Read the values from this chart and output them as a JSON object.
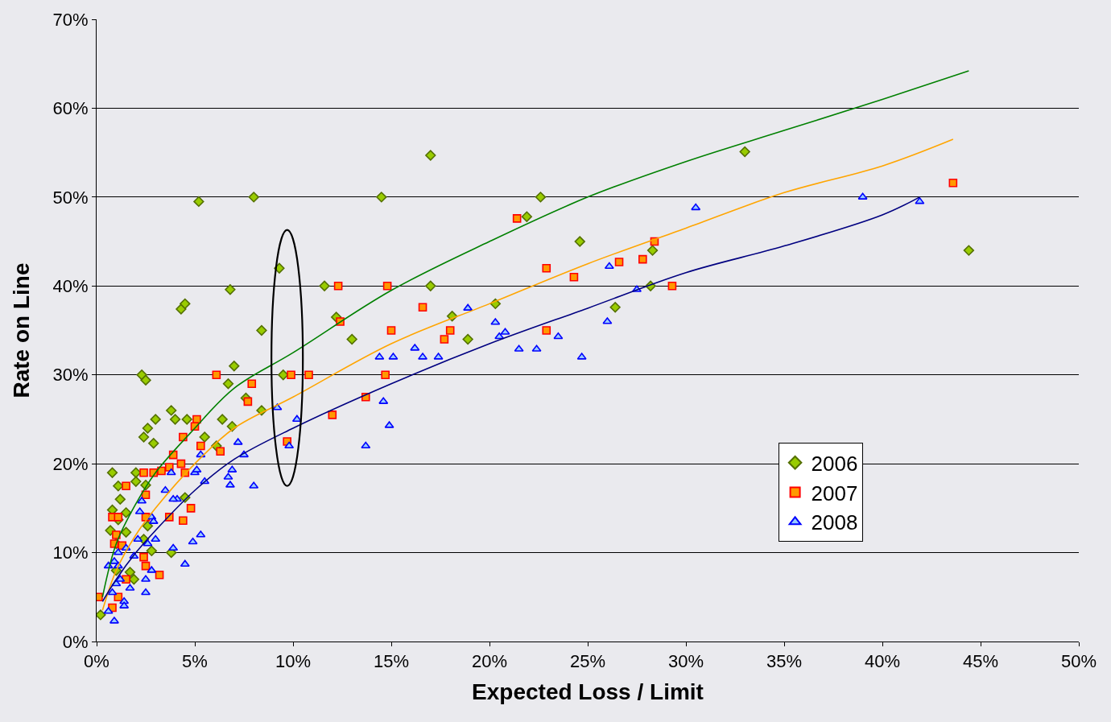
{
  "chart_data": {
    "type": "scatter",
    "xlabel": "Expected Loss / Limit",
    "ylabel": "Rate on Line",
    "xlim": [
      0,
      50
    ],
    "ylim": [
      0,
      70
    ],
    "xticks": [
      {
        "value": 0,
        "label": "0%"
      },
      {
        "value": 5,
        "label": "5%"
      },
      {
        "value": 10,
        "label": "10%"
      },
      {
        "value": 15,
        "label": "15%"
      },
      {
        "value": 20,
        "label": "20%"
      },
      {
        "value": 25,
        "label": "25%"
      },
      {
        "value": 30,
        "label": "30%"
      },
      {
        "value": 35,
        "label": "35%"
      },
      {
        "value": 40,
        "label": "40%"
      },
      {
        "value": 45,
        "label": "45%"
      },
      {
        "value": 50,
        "label": "50%"
      }
    ],
    "yticks": [
      {
        "value": 0,
        "label": "0%"
      },
      {
        "value": 10,
        "label": "10%"
      },
      {
        "value": 20,
        "label": "20%"
      },
      {
        "value": 30,
        "label": "30%"
      },
      {
        "value": 40,
        "label": "40%"
      },
      {
        "value": 50,
        "label": "50%"
      },
      {
        "value": 60,
        "label": "60%"
      },
      {
        "value": 70,
        "label": "70%"
      }
    ],
    "grid": "y",
    "legend": "bottom right",
    "series": [
      {
        "name": "2006",
        "color": "#99cc00",
        "marker": "diamond",
        "x": [
          5.2,
          8.0,
          17.0,
          14.5,
          22.6,
          21.9,
          33.0,
          44.4,
          24.6,
          28.3,
          28.2,
          26.4,
          20.3,
          18.9,
          18.1,
          17.0,
          13.0,
          12.2,
          11.6,
          9.3,
          9.5,
          8.4,
          8.4,
          6.8,
          7.0,
          6.7,
          6.9,
          6.4,
          7.6,
          4.3,
          4.5,
          2.3,
          2.5,
          3.8,
          4.6,
          3.0,
          4.0,
          2.6,
          2.4,
          2.9,
          5.5,
          6.1,
          2.0,
          0.8,
          2.5,
          1.1,
          2.0,
          1.2,
          4.5,
          1.5,
          0.8,
          1.1,
          1.5,
          3.8,
          2.8,
          1.7,
          1.9,
          0.2,
          0.7,
          1.0,
          2.6,
          1.0,
          2.4
        ],
        "values": [
          49.5,
          50.0,
          54.7,
          50.0,
          50.0,
          47.8,
          55.1,
          44.0,
          45.0,
          44.0,
          40.0,
          37.6,
          38.0,
          34.0,
          36.6,
          40.0,
          34.0,
          36.5,
          40.0,
          42.0,
          30.0,
          35.0,
          26.0,
          39.6,
          31.0,
          29.0,
          24.2,
          25.0,
          27.4,
          37.4,
          38.0,
          30.0,
          29.4,
          26.0,
          25.0,
          25.0,
          25.0,
          24.0,
          23.0,
          22.3,
          23.0,
          22.0,
          19.0,
          19.0,
          17.6,
          17.5,
          18.0,
          16.0,
          16.2,
          14.5,
          14.8,
          13.7,
          12.3,
          10.0,
          10.2,
          7.8,
          7.0,
          3.0,
          12.5,
          11.0,
          13.0,
          8.0,
          11.5
        ]
      },
      {
        "name": "2007",
        "color": "#ff9900",
        "marker": "square",
        "x": [
          43.6,
          21.4,
          22.9,
          24.3,
          26.6,
          27.8,
          28.4,
          29.3,
          14.8,
          12.3,
          12.4,
          15.0,
          16.6,
          17.7,
          18.0,
          22.9,
          14.7,
          13.7,
          12.0,
          9.9,
          10.8,
          9.7,
          6.1,
          7.9,
          7.7,
          5.1,
          5.0,
          4.4,
          5.3,
          6.3,
          3.9,
          4.3,
          4.5,
          3.7,
          2.4,
          2.9,
          3.3,
          1.5,
          2.5,
          4.8,
          4.4,
          3.7,
          2.5,
          0.8,
          1.1,
          1.0,
          0.9,
          1.3,
          2.4,
          2.5,
          3.2,
          1.5,
          1.1,
          0.1,
          0.8
        ],
        "values": [
          51.6,
          47.6,
          42.0,
          41.0,
          42.7,
          43.0,
          45.0,
          40.0,
          40.0,
          40.0,
          36.0,
          35.0,
          37.6,
          34.0,
          35.0,
          35.0,
          30.0,
          27.5,
          25.5,
          30.0,
          30.0,
          22.5,
          30.0,
          29.0,
          27.0,
          25.0,
          24.2,
          23.0,
          22.0,
          21.4,
          21.0,
          20.0,
          19.0,
          19.6,
          19.0,
          19.0,
          19.2,
          17.5,
          16.5,
          15.0,
          13.6,
          14.0,
          14.0,
          14.0,
          14.0,
          12.0,
          11.0,
          10.8,
          9.5,
          8.5,
          7.5,
          7.0,
          5.0,
          5.0,
          3.8
        ]
      },
      {
        "name": "2008",
        "color": "#99ccff",
        "marker": "triangle",
        "x": [
          41.9,
          39.0,
          30.5,
          26.1,
          27.5,
          26.0,
          24.7,
          23.5,
          22.4,
          21.5,
          20.8,
          20.5,
          20.3,
          18.9,
          17.4,
          16.6,
          16.2,
          15.1,
          14.4,
          14.6,
          14.9,
          13.7,
          10.2,
          9.2,
          9.8,
          8.0,
          7.5,
          7.2,
          6.9,
          6.7,
          6.8,
          5.3,
          5.5,
          5.0,
          5.1,
          4.1,
          3.8,
          3.9,
          3.5,
          2.3,
          2.2,
          2.8,
          2.9,
          3.0,
          3.9,
          5.3,
          4.9,
          4.5,
          2.6,
          2.1,
          1.9,
          1.5,
          1.1,
          0.9,
          0.6,
          2.5,
          2.8,
          2.5,
          1.7,
          1.4,
          1.4,
          1.0,
          0.6,
          0.9,
          1.2,
          0.8,
          1.1
        ],
        "values": [
          49.5,
          50.0,
          48.8,
          42.2,
          39.6,
          36.0,
          32.0,
          34.3,
          32.9,
          32.9,
          34.8,
          34.3,
          35.9,
          37.5,
          32.0,
          32.0,
          33.0,
          32.0,
          32.0,
          27.0,
          24.3,
          22.0,
          25.0,
          26.3,
          22.0,
          17.5,
          21.0,
          22.4,
          19.3,
          18.5,
          17.6,
          21.0,
          18.0,
          19.0,
          19.3,
          16.0,
          19.0,
          16.0,
          17.0,
          15.8,
          14.6,
          14.0,
          13.5,
          11.5,
          10.5,
          12.0,
          11.2,
          8.7,
          11.0,
          11.5,
          9.6,
          10.5,
          10.0,
          9.0,
          8.5,
          7.0,
          8.0,
          5.5,
          6.0,
          4.5,
          4.0,
          6.5,
          3.4,
          2.3,
          7.0,
          5.5,
          8.5
        ]
      },
      {
        "type": "line",
        "color": "#008000",
        "marker": "none",
        "x": [
          0.3,
          1,
          2,
          3,
          5,
          7,
          10,
          15,
          20,
          25,
          30,
          35,
          40,
          44.4
        ],
        "values": [
          5,
          11,
          15.5,
          19,
          24,
          28.5,
          32.5,
          39.5,
          45,
          50,
          54,
          57.5,
          61,
          64.2
        ]
      },
      {
        "type": "line",
        "color": "#ffa500",
        "marker": "none",
        "x": [
          0.3,
          1,
          2,
          3,
          5,
          7,
          10,
          15,
          20,
          25,
          30,
          35,
          40,
          43.6
        ],
        "values": [
          3.5,
          8,
          12,
          15,
          20,
          24,
          27.5,
          33.5,
          38,
          42.5,
          46.5,
          50.5,
          53.5,
          56.5
        ]
      },
      {
        "type": "line",
        "color": "#000080",
        "marker": "none",
        "x": [
          0.3,
          1,
          2,
          3,
          5,
          7,
          10,
          15,
          20,
          25,
          30,
          35,
          40,
          41.9
        ],
        "values": [
          4.5,
          7,
          10,
          12.5,
          17,
          20.5,
          24,
          29,
          33.5,
          37.5,
          41.5,
          44.5,
          48,
          50
        ]
      }
    ]
  }
}
